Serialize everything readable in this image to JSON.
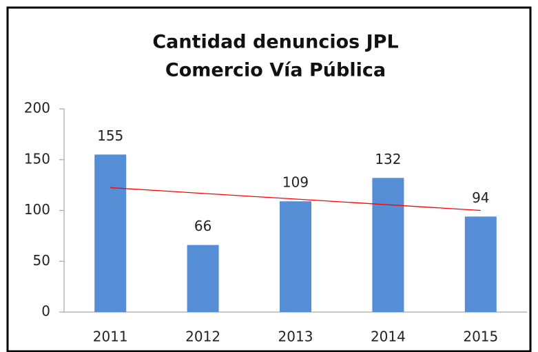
{
  "chart_data": {
    "type": "bar",
    "title": [
      "Cantidad denuncios JPL",
      "Comercio Vía Pública"
    ],
    "categories": [
      "2011",
      "2012",
      "2013",
      "2014",
      "2015"
    ],
    "values": [
      155,
      66,
      109,
      132,
      94
    ],
    "color": "#558ed5",
    "trend_line": {
      "color": "#ff0000",
      "values": [
        122.4,
        100
      ]
    },
    "ylim": [
      0,
      200
    ],
    "yticks": [
      0,
      50,
      100,
      150,
      200
    ],
    "grid": false
  }
}
